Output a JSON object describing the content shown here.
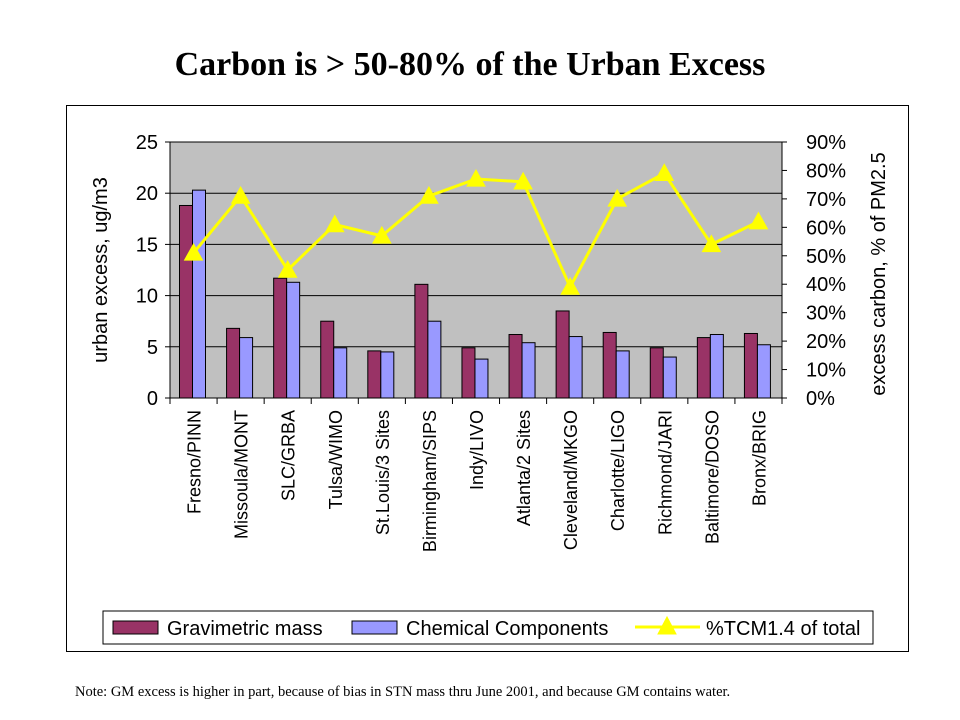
{
  "title": "Carbon is > 50-80% of the Urban Excess",
  "note": "Note: GM excess is higher in part, because of bias in STN mass thru June 2001, and because GM contains water.",
  "chart_data": {
    "type": "bar",
    "categories": [
      "Fresno/PINN",
      "Missoula/MONT",
      "SLC/GRBA",
      "Tulsa/WIMO",
      "St.Louis/3 Sites",
      "Birmingham/SIPS",
      "Indy/LIVO",
      "Atlanta/2 Sites",
      "Cleveland/MKGO",
      "Charlotte/LIGO",
      "Richmond/JARI",
      "Baltimore/DOSO",
      "Bronx/BRIG"
    ],
    "series": [
      {
        "name": "Gravimetric mass",
        "type": "bar",
        "axis": "left",
        "color": "#993366",
        "values": [
          18.8,
          6.8,
          11.7,
          7.5,
          4.6,
          11.1,
          4.9,
          6.2,
          8.5,
          6.4,
          4.9,
          5.9,
          6.3
        ]
      },
      {
        "name": "Chemical Components",
        "type": "bar",
        "axis": "left",
        "color": "#9999ff",
        "values": [
          20.3,
          5.9,
          11.3,
          4.9,
          4.5,
          7.5,
          3.8,
          5.4,
          6.0,
          4.6,
          4.0,
          6.2,
          5.2
        ]
      },
      {
        "name": "%TCM1.4 of total",
        "type": "line",
        "axis": "right",
        "color": "#ffff00",
        "values": [
          0.51,
          0.71,
          0.45,
          0.61,
          0.57,
          0.71,
          0.77,
          0.76,
          0.39,
          0.7,
          0.79,
          0.54,
          0.62
        ]
      }
    ],
    "ylabel": "urban excess,  ug/m3",
    "ylim": [
      0,
      25
    ],
    "yticks": [
      "0",
      "5",
      "10",
      "15",
      "20",
      "25"
    ],
    "y2label": "excess carbon,  %  of PM2.5",
    "y2lim": [
      0,
      0.9
    ],
    "y2ticks": [
      "0%",
      "10%",
      "20%",
      "30%",
      "40%",
      "50%",
      "60%",
      "70%",
      "80%",
      "90%"
    ],
    "grid": true,
    "plot_background": "#c0c0c0",
    "legend": "bottom"
  }
}
